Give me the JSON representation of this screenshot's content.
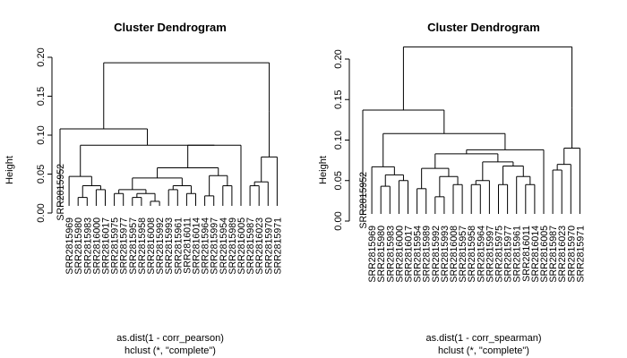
{
  "chart_data": [
    {
      "type": "dendrogram",
      "title": "Cluster Dendrogram",
      "ylabel": "Height",
      "xlabel": "as.dist(1 - corr_pearson)",
      "sub": "hclust (*, \"complete\")",
      "ylim": [
        0,
        0.2
      ],
      "yticks": [
        "0.00",
        "0.05",
        "0.10",
        "0.15",
        "0.20"
      ],
      "leaves": [
        "SRR2815952",
        "SRR2815969",
        "SRR2815980",
        "SRR2815983",
        "SRR2816000",
        "SRR2816017",
        "SRR2815975",
        "SRR2815977",
        "SRR2815957",
        "SRR2815958",
        "SRR2816008",
        "SRR2815992",
        "SRR2815993",
        "SRR2815961",
        "SRR2816011",
        "SRR2816014",
        "SRR2815964",
        "SRR2815997",
        "SRR2815954",
        "SRR2815989",
        "SRR2816005",
        "SRR2815987",
        "SRR2816023",
        "SRR2815970",
        "SRR2815971"
      ],
      "merges": [
        [
          [
            "SRR2815980"
          ],
          [
            "SRR2815983"
          ],
          0.02
        ],
        [
          [
            "SRR2816000"
          ],
          [
            "SRR2816017"
          ],
          0.03
        ],
        [
          [
            0
          ],
          [
            1
          ],
          0.035
        ],
        [
          [
            "SRR2815969"
          ],
          [
            2
          ],
          0.047
        ],
        [
          [
            "SRR2815957"
          ],
          [
            "SRR2815958"
          ],
          0.02
        ],
        [
          [
            "SRR2816008"
          ],
          [
            "SRR2815992"
          ],
          0.015
        ],
        [
          [
            4
          ],
          [
            5
          ],
          0.025
        ],
        [
          [
            "SRR2815975"
          ],
          [
            "SRR2815977"
          ],
          0.025
        ],
        [
          [
            7
          ],
          [
            6
          ],
          0.03
        ],
        [
          [
            "SRR2815993"
          ],
          [
            "SRR2815961"
          ],
          0.03
        ],
        [
          [
            "SRR2816011"
          ],
          [
            "SRR2816014"
          ],
          0.025
        ],
        [
          [
            9
          ],
          [
            10
          ],
          0.035
        ],
        [
          [
            8
          ],
          [
            11
          ],
          0.045
        ],
        [
          [
            "SRR2815964"
          ],
          [
            "SRR2815997"
          ],
          0.022
        ],
        [
          [
            "SRR2815954"
          ],
          [
            "SRR2815989"
          ],
          0.035
        ],
        [
          [
            13
          ],
          [
            14
          ],
          0.048
        ],
        [
          [
            12
          ],
          [
            15
          ],
          0.058
        ],
        [
          [
            16
          ],
          [
            "SRR2816005"
          ],
          0.087
        ],
        [
          [
            3
          ],
          [
            17
          ],
          0.087
        ],
        [
          [
            "SRR2815952"
          ],
          [
            18
          ],
          0.108
        ],
        [
          [
            "SRR2815987"
          ],
          [
            "SRR2816023"
          ],
          0.035
        ],
        [
          [
            20
          ],
          [
            "SRR2815970"
          ],
          0.04
        ],
        [
          [
            21
          ],
          [
            "SRR2815971"
          ],
          0.072
        ],
        [
          [
            22
          ],
          [],
          0.13
        ],
        [
          [
            19
          ],
          [
            23
          ],
          0.193
        ]
      ]
    },
    {
      "type": "dendrogram",
      "title": "Cluster Dendrogram",
      "ylabel": "Height",
      "xlabel": "as.dist(1 - corr_spearman)",
      "sub": "hclust (*, \"complete\")",
      "ylim": [
        0,
        0.2
      ],
      "yticks": [
        "0.00",
        "0.05",
        "0.10",
        "0.15",
        "0.20"
      ],
      "leaves": [
        "SRR2815952",
        "SRR2815969",
        "SRR2815980",
        "SRR2815983",
        "SRR2816000",
        "SRR2816017",
        "SRR2815954",
        "SRR2815989",
        "SRR2815992",
        "SRR2815993",
        "SRR2816008",
        "SRR2815957",
        "SRR2815958",
        "SRR2815964",
        "SRR2815997",
        "SRR2815975",
        "SRR2815977",
        "SRR2815961",
        "SRR2816011",
        "SRR2816014",
        "SRR2816005",
        "SRR2815987",
        "SRR2816023",
        "SRR2815970",
        "SRR2815971"
      ],
      "merges": [
        [
          [
            "SRR2815980"
          ],
          [
            "SRR2815983"
          ],
          0.043
        ],
        [
          [
            "SRR2816000"
          ],
          [
            "SRR2816017"
          ],
          0.05
        ],
        [
          [
            0
          ],
          [
            1
          ],
          0.057
        ],
        [
          [
            "SRR2815969"
          ],
          [
            2
          ],
          0.067
        ],
        [
          [
            "SRR2815992"
          ],
          [
            "SRR2815993"
          ],
          0.03
        ],
        [
          [
            "SRR2816008"
          ],
          [
            "SRR2815957"
          ],
          0.045
        ],
        [
          [
            4
          ],
          [
            5
          ],
          0.055
        ],
        [
          [
            "SRR2815954"
          ],
          [
            "SRR2815989"
          ],
          0.04
        ],
        [
          [
            7
          ],
          [
            6
          ],
          0.065
        ],
        [
          [
            "SRR2815958"
          ],
          [
            "SRR2815964"
          ],
          0.045
        ],
        [
          [
            9
          ],
          [
            "SRR2815997"
          ],
          0.05
        ],
        [
          [
            "SRR2815975"
          ],
          [
            "SRR2815977"
          ],
          0.045
        ],
        [
          [
            "SRR2816011"
          ],
          [
            "SRR2816014"
          ],
          0.045
        ],
        [
          [
            "SRR2815961"
          ],
          [
            12
          ],
          0.055
        ],
        [
          [
            11
          ],
          [
            13
          ],
          0.068
        ],
        [
          [
            10
          ],
          [
            14
          ],
          0.073
        ],
        [
          [
            8
          ],
          [
            15
          ],
          0.083
        ],
        [
          [
            16
          ],
          [
            "SRR2816005"
          ],
          0.088
        ],
        [
          [
            3
          ],
          [
            17
          ],
          0.108
        ],
        [
          [
            "SRR2815952"
          ],
          [
            18
          ],
          0.137
        ],
        [
          [
            "SRR2815987"
          ],
          [
            "SRR2816023"
          ],
          0.063
        ],
        [
          [
            20
          ],
          [
            "SRR2815970"
          ],
          0.07
        ],
        [
          [
            21
          ],
          [
            "SRR2815971"
          ],
          0.09
        ],
        [
          [
            22
          ],
          [],
          0.14
        ],
        [
          [
            19
          ],
          [
            23
          ],
          0.215
        ]
      ]
    }
  ]
}
